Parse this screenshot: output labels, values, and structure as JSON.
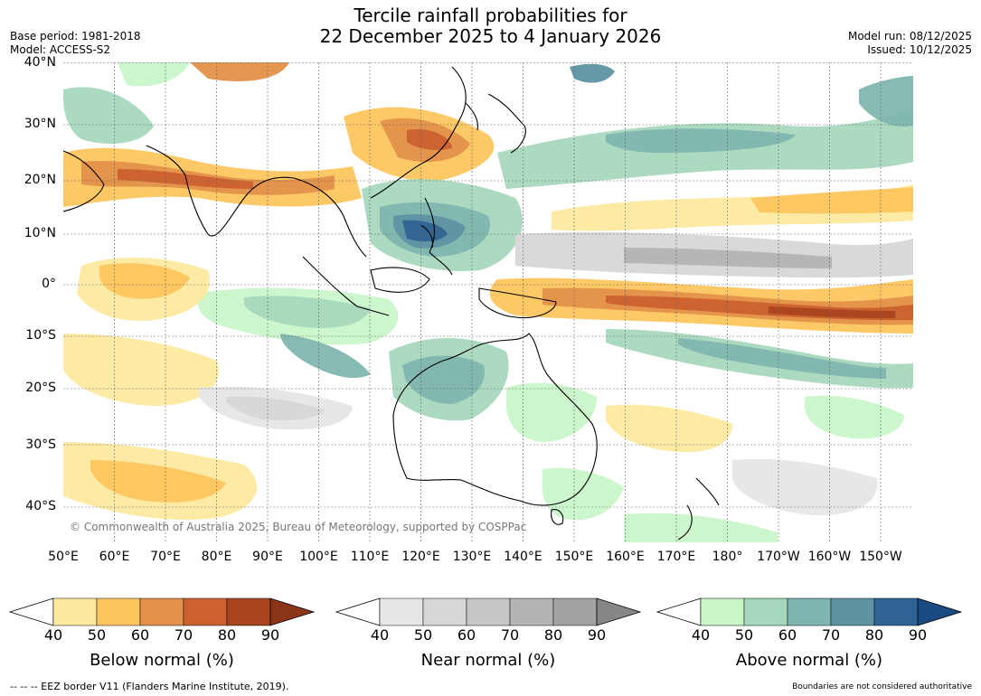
{
  "title": {
    "line1": "Tercile rainfall probabilities for",
    "line2": "22 December 2025 to 4 January 2026"
  },
  "header": {
    "base_period": "Base period: 1981-2018",
    "model": "Model: ACCESS-S2",
    "model_run": "Model run: 08/12/2025",
    "issued": "Issued: 10/12/2025"
  },
  "map": {
    "lat_ticks": [
      "40°N",
      "30°N",
      "20°N",
      "10°N",
      "0°",
      "10°S",
      "20°S",
      "30°S",
      "40°S"
    ],
    "lon_ticks": [
      "50°E",
      "60°E",
      "70°E",
      "80°E",
      "90°E",
      "100°E",
      "110°E",
      "120°E",
      "130°E",
      "140°E",
      "150°E",
      "160°E",
      "170°E",
      "180°",
      "170°W",
      "160°W",
      "150°W"
    ],
    "copyright": "© Commonwealth of Australia 2025, Bureau of Meteorology, supported by COSPPac"
  },
  "colorbars": [
    {
      "title": "Below normal (%)",
      "ticks": [
        "40",
        "50",
        "60",
        "70",
        "80",
        "90"
      ],
      "colors": [
        "#fde9a0",
        "#fdc55e",
        "#e3914a",
        "#cc6030",
        "#a94420"
      ],
      "extend": "#8c3418"
    },
    {
      "title": "Near normal (%)",
      "ticks": [
        "40",
        "50",
        "60",
        "70",
        "80",
        "90"
      ],
      "colors": [
        "#e6e6e6",
        "#d7d7d7",
        "#c6c6c6",
        "#b4b4b4",
        "#a2a2a2"
      ],
      "extend": "#868686"
    },
    {
      "title": "Above normal (%)",
      "ticks": [
        "40",
        "50",
        "60",
        "70",
        "80",
        "90"
      ],
      "colors": [
        "#c9f5c8",
        "#a6d8bd",
        "#80b6af",
        "#5e94a2",
        "#2f6394"
      ],
      "extend": "#1a4b83"
    }
  ],
  "footer": {
    "eez": "--  --  -- EEZ border V11 (Flanders Marine Institute, 2019).",
    "disclaimer": "Boundaries are not considered authoritative"
  }
}
